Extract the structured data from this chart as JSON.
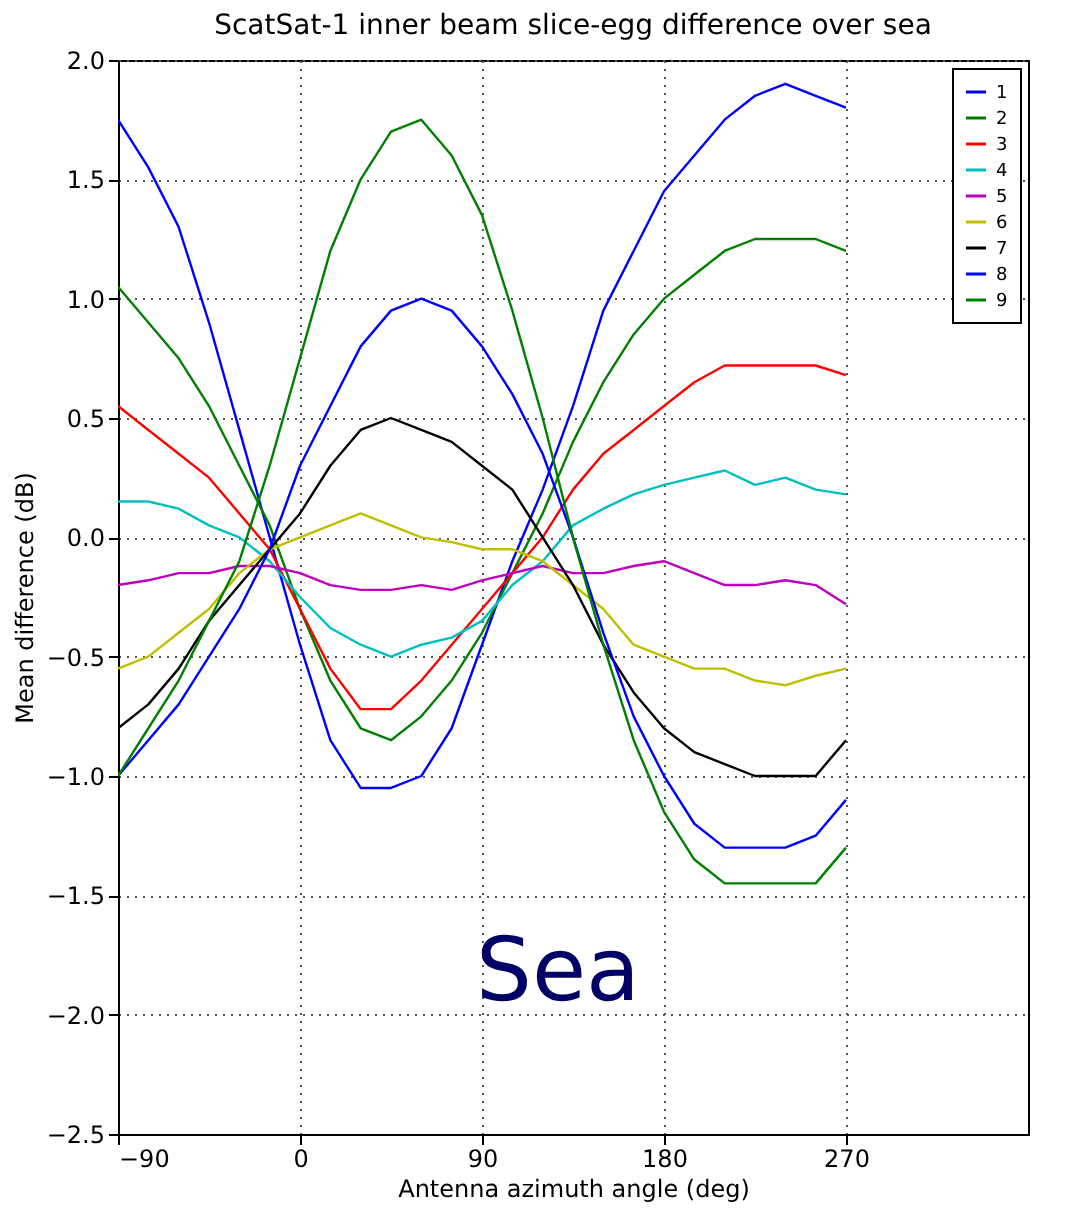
{
  "chart_data": {
    "type": "line",
    "title": "ScatSat-1 inner beam slice-egg difference over sea",
    "xlabel": "Antenna azimuth angle (deg)",
    "ylabel": "Mean difference (dB)",
    "x": [
      -90,
      -75,
      -60,
      -45,
      -30,
      -15,
      0,
      15,
      30,
      45,
      60,
      75,
      90,
      105,
      120,
      135,
      150,
      165,
      180,
      195,
      210,
      225,
      240,
      255,
      270
    ],
    "series": [
      {
        "name": "1",
        "color": "#0000ff",
        "values": [
          1.75,
          1.55,
          1.3,
          0.9,
          0.45,
          0.0,
          -0.45,
          -0.85,
          -1.05,
          -1.05,
          -1.0,
          -0.8,
          -0.45,
          -0.1,
          0.2,
          0.55,
          0.95,
          1.2,
          1.45,
          1.6,
          1.75,
          1.85,
          1.9,
          1.85,
          1.8
        ]
      },
      {
        "name": "2",
        "color": "#008000",
        "values": [
          1.05,
          0.9,
          0.75,
          0.55,
          0.3,
          0.05,
          -0.3,
          -0.6,
          -0.8,
          -0.85,
          -0.75,
          -0.6,
          -0.4,
          -0.15,
          0.1,
          0.4,
          0.65,
          0.85,
          1.0,
          1.1,
          1.2,
          1.25,
          1.25,
          1.25,
          1.2
        ]
      },
      {
        "name": "3",
        "color": "#ff0000",
        "values": [
          0.55,
          0.45,
          0.35,
          0.25,
          0.1,
          -0.05,
          -0.3,
          -0.55,
          -0.72,
          -0.72,
          -0.6,
          -0.45,
          -0.3,
          -0.15,
          0.0,
          0.2,
          0.35,
          0.45,
          0.55,
          0.65,
          0.72,
          0.72,
          0.72,
          0.72,
          0.68
        ]
      },
      {
        "name": "4",
        "color": "#00bfbf",
        "values": [
          0.15,
          0.15,
          0.12,
          0.05,
          0.0,
          -0.1,
          -0.25,
          -0.38,
          -0.45,
          -0.5,
          -0.45,
          -0.42,
          -0.35,
          -0.2,
          -0.1,
          0.05,
          0.12,
          0.18,
          0.22,
          0.25,
          0.28,
          0.22,
          0.25,
          0.2,
          0.18
        ]
      },
      {
        "name": "5",
        "color": "#bf00bf",
        "values": [
          -0.2,
          -0.18,
          -0.15,
          -0.15,
          -0.12,
          -0.12,
          -0.15,
          -0.2,
          -0.22,
          -0.22,
          -0.2,
          -0.22,
          -0.18,
          -0.15,
          -0.12,
          -0.15,
          -0.15,
          -0.12,
          -0.1,
          -0.15,
          -0.2,
          -0.2,
          -0.18,
          -0.2,
          -0.28
        ]
      },
      {
        "name": "6",
        "color": "#bfbf00",
        "values": [
          -0.55,
          -0.5,
          -0.4,
          -0.3,
          -0.15,
          -0.05,
          0.0,
          0.05,
          0.1,
          0.05,
          0.0,
          -0.02,
          -0.05,
          -0.05,
          -0.1,
          -0.2,
          -0.3,
          -0.45,
          -0.5,
          -0.55,
          -0.55,
          -0.6,
          -0.62,
          -0.58,
          -0.55
        ]
      },
      {
        "name": "7",
        "color": "#000000",
        "values": [
          -0.8,
          -0.7,
          -0.55,
          -0.35,
          -0.2,
          -0.05,
          0.1,
          0.3,
          0.45,
          0.5,
          0.45,
          0.4,
          0.3,
          0.2,
          0.0,
          -0.2,
          -0.45,
          -0.65,
          -0.8,
          -0.9,
          -0.95,
          -1.0,
          -1.0,
          -1.0,
          -0.85
        ]
      },
      {
        "name": "8",
        "color": "#0000ff",
        "values": [
          -1.0,
          -0.85,
          -0.7,
          -0.5,
          -0.3,
          -0.05,
          0.3,
          0.55,
          0.8,
          0.95,
          1.0,
          0.95,
          0.8,
          0.6,
          0.35,
          0.0,
          -0.4,
          -0.75,
          -1.0,
          -1.2,
          -1.3,
          -1.3,
          -1.3,
          -1.25,
          -1.1
        ]
      },
      {
        "name": "9",
        "color": "#008000",
        "values": [
          -1.0,
          -0.8,
          -0.6,
          -0.35,
          -0.1,
          0.3,
          0.75,
          1.2,
          1.5,
          1.7,
          1.75,
          1.6,
          1.35,
          0.95,
          0.5,
          0.0,
          -0.45,
          -0.85,
          -1.15,
          -1.35,
          -1.45,
          -1.45,
          -1.45,
          -1.45,
          -1.3
        ]
      }
    ],
    "xlim": [
      -90,
      360
    ],
    "xticks": [
      {
        "value": -90,
        "label": "−90"
      },
      0,
      90,
      180,
      270
    ],
    "ylim": [
      -2.5,
      2.0
    ],
    "yticks": [
      {
        "value": -2.5,
        "label": "−2.5"
      },
      {
        "value": -2.0,
        "label": "−2.0"
      },
      {
        "value": -1.5,
        "label": "−1.5"
      },
      {
        "value": -1.0,
        "label": "−1.0"
      },
      {
        "value": -0.5,
        "label": "−0.5"
      },
      {
        "value": 0,
        "label": "0.0"
      },
      {
        "value": 0.5,
        "label": "0.5"
      },
      {
        "value": 1.0,
        "label": "1.0"
      },
      {
        "value": 1.5,
        "label": "1.5"
      },
      {
        "value": 2.0,
        "label": "2.0"
      }
    ],
    "grid": true,
    "legend": "top right",
    "annotations": [
      "Sea"
    ]
  }
}
